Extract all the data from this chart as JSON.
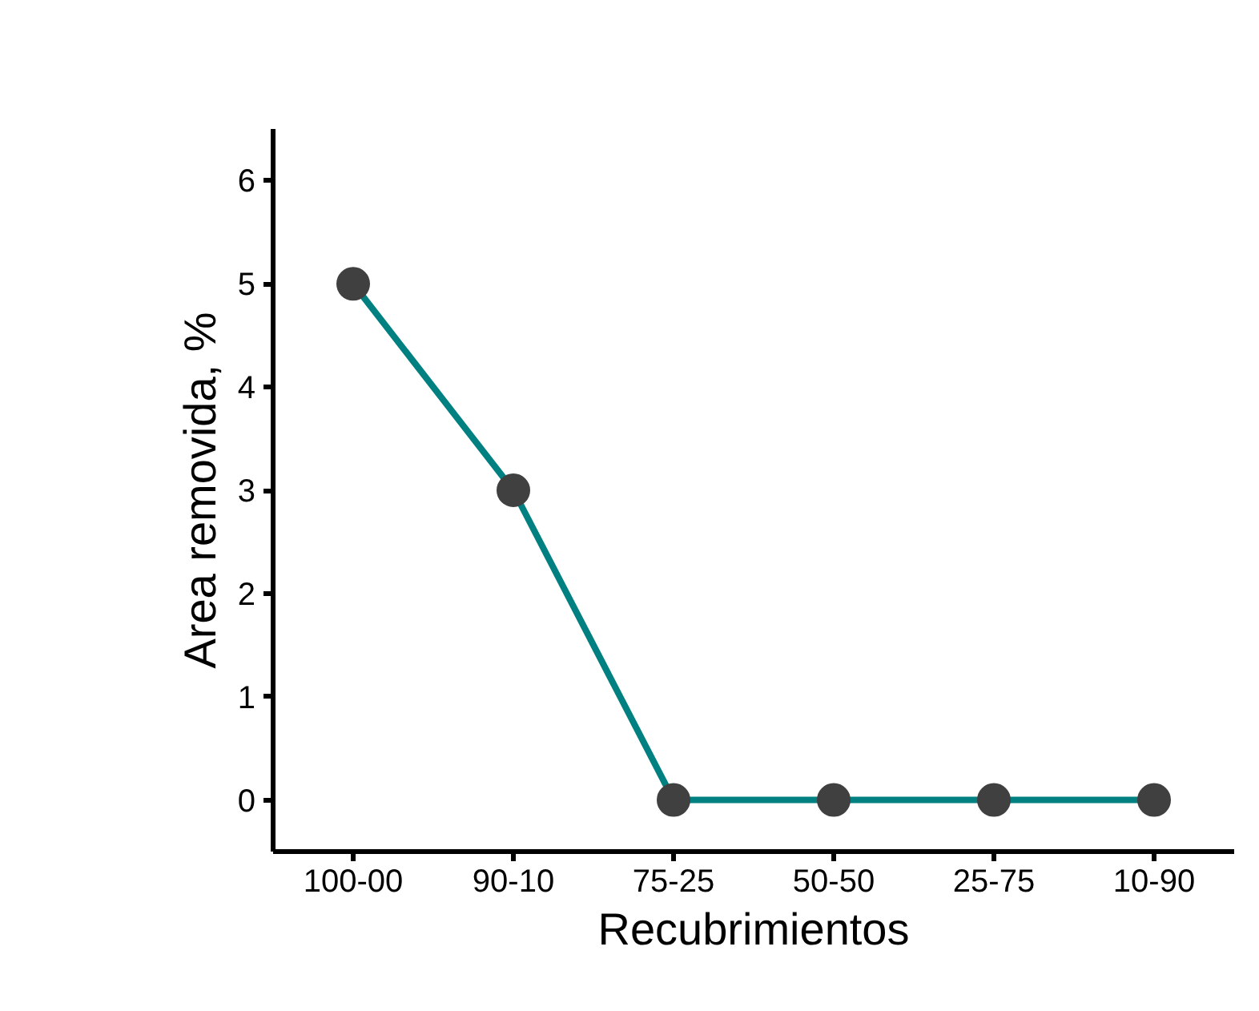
{
  "chart_data": {
    "type": "line",
    "xlabel": "Recubrimientos",
    "ylabel": "Area removida, %",
    "categories": [
      "100-00",
      "90-10",
      "75-25",
      "50-50",
      "25-75",
      "10-90"
    ],
    "series": [
      {
        "color": "#008080",
        "colors": [
          "#404040",
          "#404040",
          "#404040",
          "#404040",
          "#404040",
          "#404040"
        ],
        "values": [
          5,
          3,
          0,
          0,
          0,
          0
        ]
      }
    ],
    "marker": "circle",
    "line_style": "solid",
    "grid": false,
    "ylim": [
      -0.5,
      6.5
    ],
    "yticks": [
      0,
      1,
      2,
      3,
      4,
      5,
      6
    ]
  }
}
